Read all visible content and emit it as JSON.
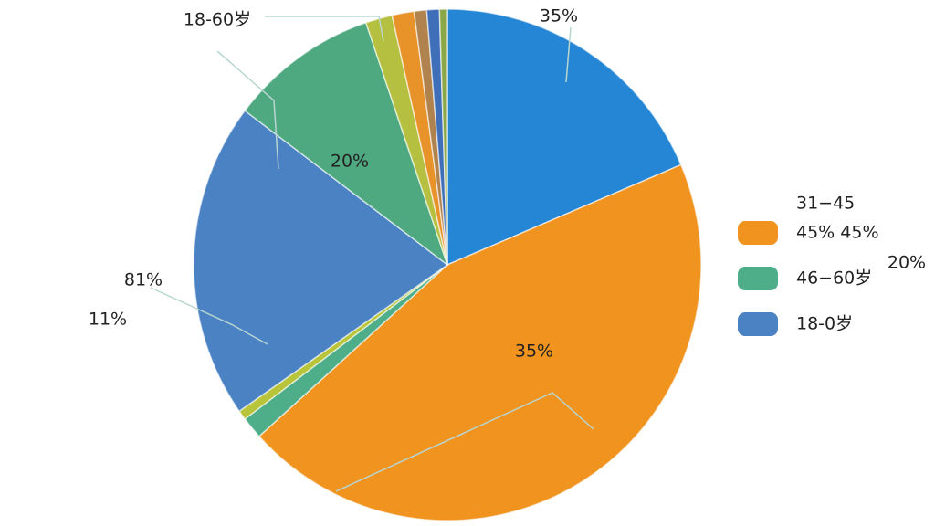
{
  "chart_data": {
    "type": "pie",
    "values": [
      18.6,
      44.7,
      1.4,
      0.6,
      20,
      9.5,
      1.7,
      1.4,
      0.8,
      0.8,
      0.5
    ],
    "colors": [
      "#2486d4",
      "#f0931f",
      "#4fae8a",
      "#b8c43a",
      "#4a82c4",
      "#4fa980",
      "#b6c040",
      "#e8922a",
      "#b0824e",
      "#3f6fb8",
      "#8aa848"
    ],
    "annotations": [
      "18-60岁",
      "35%",
      "20%",
      "81%",
      "11%",
      "35%",
      "20%"
    ],
    "legend_title": "31−45",
    "legend": [
      {
        "label": "45%  45%",
        "color": "#f0931f"
      },
      {
        "label": "46−60岁",
        "color": "#4fae8a"
      },
      {
        "label": "18-0岁",
        "color": "#4a82c4"
      }
    ]
  }
}
